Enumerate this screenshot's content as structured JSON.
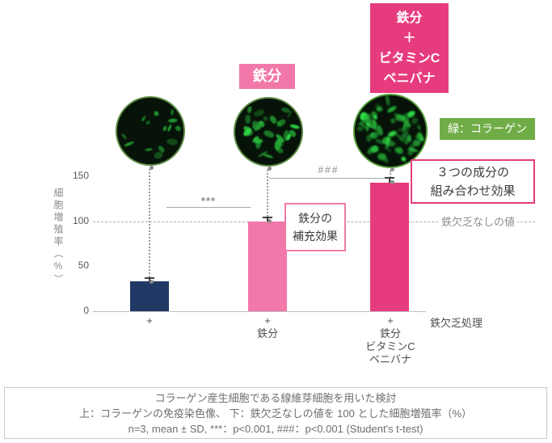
{
  "top_labels": {
    "iron": "鉄分",
    "combo_lines": [
      "鉄分",
      "＋",
      "ビタミンC",
      "ベニバナ"
    ]
  },
  "legend": {
    "label": "緑：コラーゲン",
    "color": "#70ad47"
  },
  "micrographs": [
    {
      "name": "iron-deficient-control",
      "cells": 14,
      "brightness": 0.6
    },
    {
      "name": "iron-supplemented",
      "cells": 32,
      "brightness": 0.8
    },
    {
      "name": "iron-vitaminc-safflower",
      "cells": 60,
      "brightness": 1.0
    }
  ],
  "chart_data": {
    "type": "bar",
    "title": "",
    "ylabel": "細胞増殖率（%）",
    "ylim": [
      0,
      150
    ],
    "yticks": [
      150,
      100,
      50,
      0
    ],
    "grid": false,
    "categories": [
      [
        "+"
      ],
      [
        "+",
        "鉄分"
      ],
      [
        "+",
        "鉄分",
        "ビタミンC",
        "ベニバナ"
      ]
    ],
    "values": [
      33,
      100,
      143
    ],
    "errors": [
      5,
      5,
      6
    ],
    "bar_colors": [
      "#203864",
      "#f178a8",
      "#e63c7e"
    ],
    "significance": [
      {
        "between": "control-vs-iron",
        "label": "***"
      },
      {
        "between": "iron-vs-combo",
        "label": "###"
      }
    ],
    "reference_line": {
      "value": 100,
      "label": "鉄欠乏なしの値"
    },
    "x_axis_note": "鉄欠乏処理"
  },
  "callouts": {
    "iron_effect_lines": [
      "鉄分の",
      "補充効果"
    ],
    "combo_effect_lines": [
      "３つの成分の",
      "組み合わせ効果"
    ]
  },
  "caption_lines": [
    "コラーゲン産生細胞である線維芽細胞を用いた検討",
    "上：コラーゲンの免疫染色像、 下：鉄欠乏なしの値を 100 とした細胞増殖率（%）",
    "n=3, mean ± SD, ***：p<0.001, ###：p<0.001 (Student's t-test)"
  ],
  "colors": {
    "navy": "#203864",
    "pink": "#f178a8",
    "magenta": "#e63c7e",
    "green": "#70ad47",
    "gray_text": "#6e6e6e"
  }
}
